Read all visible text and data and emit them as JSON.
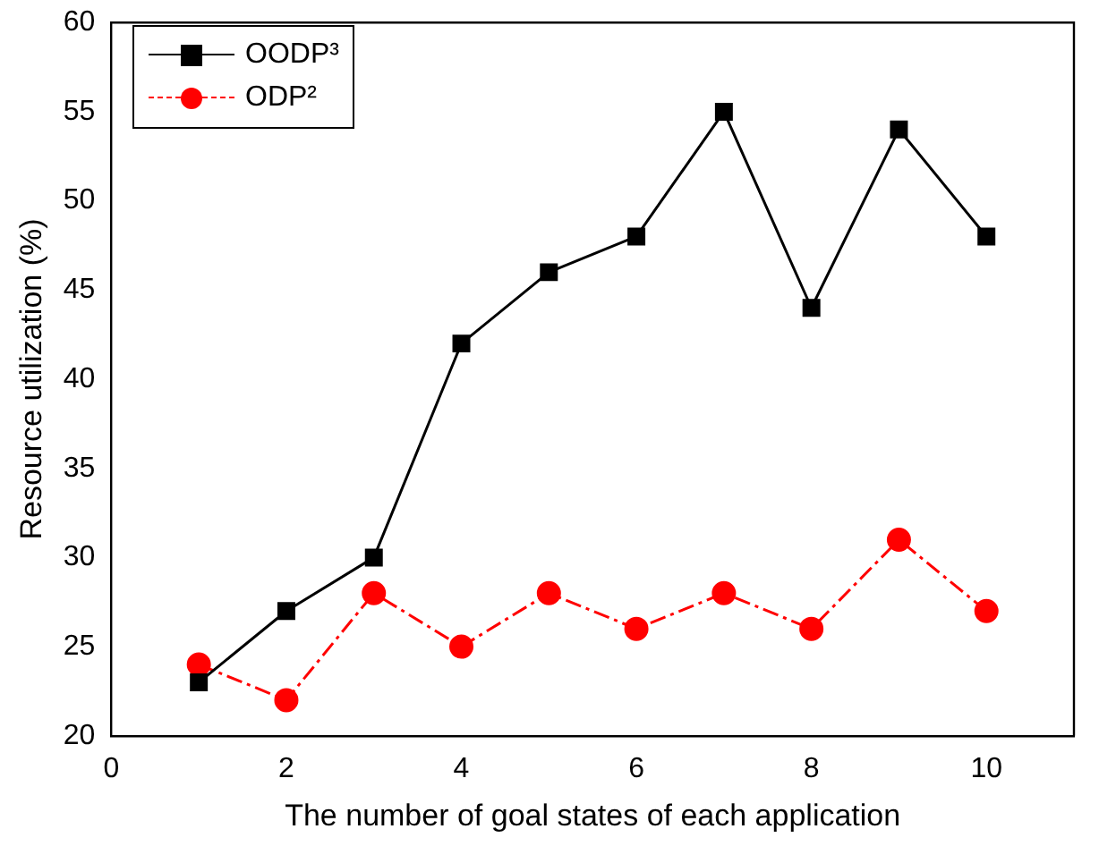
{
  "chart_data": {
    "type": "line",
    "xlabel": "The number of goal states of each application",
    "ylabel": "Resource utilization (%)",
    "x": [
      1,
      2,
      3,
      4,
      5,
      6,
      7,
      8,
      9,
      10
    ],
    "series": [
      {
        "name": "OODP³",
        "color": "#000000",
        "marker": "square",
        "line_style": "solid",
        "values": [
          23,
          27,
          30,
          42,
          46,
          48,
          55,
          44,
          54,
          48
        ]
      },
      {
        "name": "ODP²",
        "color": "#ff0000",
        "marker": "circle",
        "line_style": "dashed",
        "values": [
          24,
          22,
          28,
          25,
          28,
          26,
          28,
          26,
          31,
          27
        ]
      }
    ],
    "xlim": [
      0,
      11
    ],
    "xticks": [
      0,
      2,
      4,
      6,
      8,
      10
    ],
    "ylim": [
      20,
      60
    ],
    "yticks": [
      20,
      25,
      30,
      35,
      40,
      45,
      50,
      55,
      60
    ],
    "grid": false,
    "legend": "top left"
  }
}
